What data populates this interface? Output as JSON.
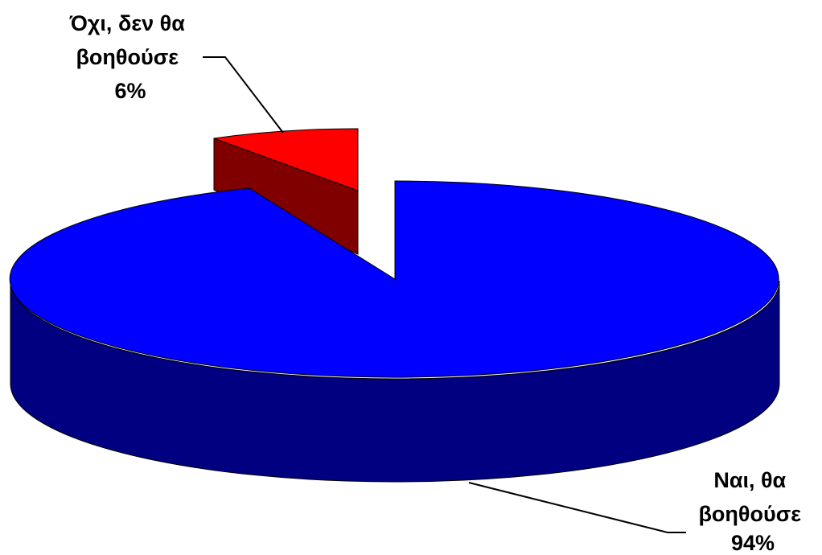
{
  "chart_data": {
    "type": "pie",
    "title": "",
    "slices": [
      {
        "label_lines": [
          "Ναι, θα",
          "βοηθούσε",
          "94%"
        ],
        "value": 94,
        "color": "#0000FF",
        "side_color": "#000080"
      },
      {
        "label_lines": [
          "Όχι, δεν θα",
          "βοηθούσε",
          "6%"
        ],
        "value": 6,
        "color": "#FF0000",
        "side_color": "#800000"
      }
    ],
    "exploded_slice": 1,
    "style": "3d"
  }
}
